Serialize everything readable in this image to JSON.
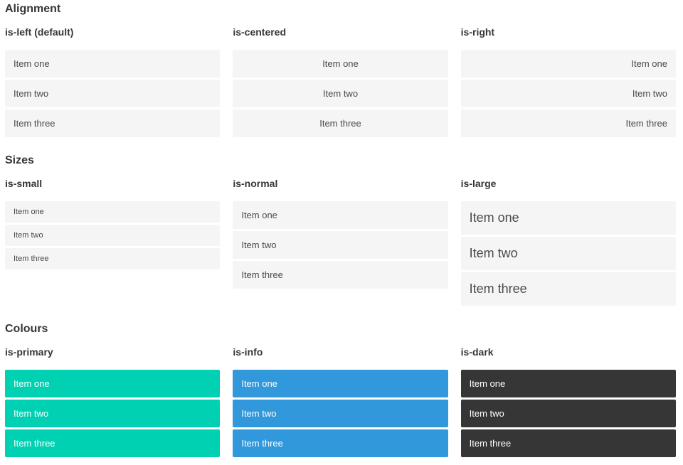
{
  "colors": {
    "primary": "#00d1b2",
    "info": "#3298dc",
    "dark": "#363636",
    "item_bg": "#f5f5f5",
    "item_text": "#4a4a4a",
    "heading_text": "#363636",
    "colored_item_text": "#ffffff"
  },
  "sections": [
    {
      "title": "Alignment",
      "columns": [
        {
          "label": "is-left (default)",
          "items": [
            "Item one",
            "Item two",
            "Item three"
          ]
        },
        {
          "label": "is-centered",
          "items": [
            "Item one",
            "Item two",
            "Item three"
          ]
        },
        {
          "label": "is-right",
          "items": [
            "Item one",
            "Item two",
            "Item three"
          ]
        }
      ]
    },
    {
      "title": "Sizes",
      "columns": [
        {
          "label": "is-small",
          "items": [
            "Item one",
            "Item two",
            "Item three"
          ]
        },
        {
          "label": "is-normal",
          "items": [
            "Item one",
            "Item two",
            "Item three"
          ]
        },
        {
          "label": "is-large",
          "items": [
            "Item one",
            "Item two",
            "Item three"
          ]
        }
      ]
    },
    {
      "title": "Colours",
      "columns": [
        {
          "label": "is-primary",
          "items": [
            "Item one",
            "Item two",
            "Item three"
          ]
        },
        {
          "label": "is-info",
          "items": [
            "Item one",
            "Item two",
            "Item three"
          ]
        },
        {
          "label": "is-dark",
          "items": [
            "Item one",
            "Item two",
            "Item three"
          ]
        }
      ]
    }
  ]
}
